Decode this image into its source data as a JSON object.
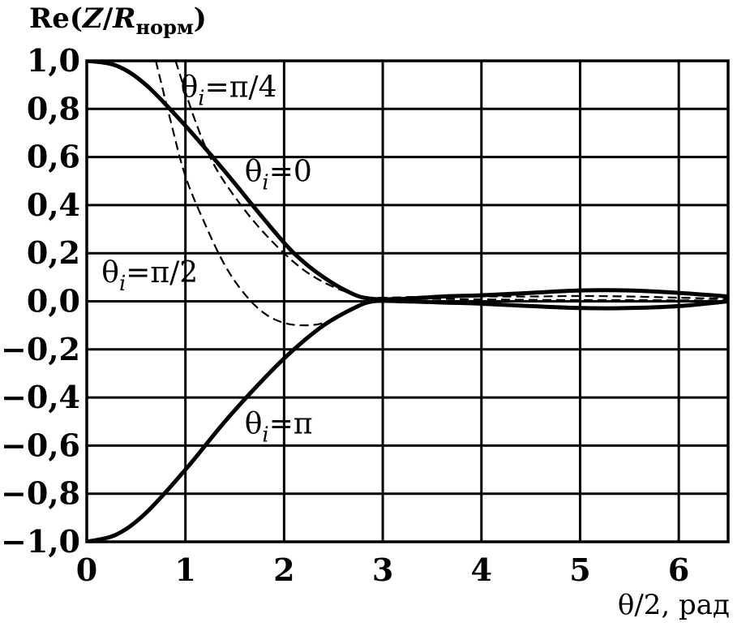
{
  "chart_data": {
    "type": "line",
    "title": "",
    "ylabel_prefix": "Re(",
    "ylabel_z": "Z",
    "ylabel_slash": "/",
    "ylabel_r": "R",
    "ylabel_sub": "норм",
    "ylabel_suffix": ")",
    "xlabel": "θ/2, рад",
    "xlim": [
      0,
      6.5
    ],
    "ylim": [
      -1.0,
      1.0
    ],
    "grid": true,
    "x_ticks": [
      {
        "value": 0,
        "label": "0"
      },
      {
        "value": 1,
        "label": "1"
      },
      {
        "value": 2,
        "label": "2"
      },
      {
        "value": 3,
        "label": "3"
      },
      {
        "value": 4,
        "label": "4"
      },
      {
        "value": 5,
        "label": "5"
      },
      {
        "value": 6,
        "label": "6"
      }
    ],
    "y_ticks": [
      {
        "value": 1.0,
        "label": "1,0"
      },
      {
        "value": 0.8,
        "label": "0,8"
      },
      {
        "value": 0.6,
        "label": "0,6"
      },
      {
        "value": 0.4,
        "label": "0,4"
      },
      {
        "value": 0.2,
        "label": "0,2"
      },
      {
        "value": 0.0,
        "label": "0,0"
      },
      {
        "value": -0.2,
        "label": "−0,2"
      },
      {
        "value": -0.4,
        "label": "−0,4"
      },
      {
        "value": -0.6,
        "label": "−0,6"
      },
      {
        "value": -0.8,
        "label": "−0,8"
      },
      {
        "value": -1.0,
        "label": "−1,0"
      }
    ],
    "series": [
      {
        "name": "θi=0",
        "label_main": "θ",
        "label_sub": "i",
        "label_rest": "=0",
        "label_pos": [
          1.6,
          0.5
        ],
        "style": "solid",
        "points": [
          [
            0,
            1.0
          ],
          [
            0.3,
            0.98
          ],
          [
            0.6,
            0.9
          ],
          [
            1.0,
            0.73
          ],
          [
            1.4,
            0.54
          ],
          [
            1.8,
            0.34
          ],
          [
            2.1,
            0.2
          ],
          [
            2.4,
            0.1
          ],
          [
            2.7,
            0.03
          ],
          [
            2.9,
            0.01
          ],
          [
            3.2,
            0.01
          ],
          [
            3.6,
            0.02
          ],
          [
            4.0,
            0.025
          ],
          [
            4.5,
            0.035
          ],
          [
            5.0,
            0.045
          ],
          [
            5.5,
            0.045
          ],
          [
            6.0,
            0.035
          ],
          [
            6.5,
            0.02
          ]
        ]
      },
      {
        "name": "θi=π",
        "label_main": "θ",
        "label_sub": "i",
        "label_rest": "=π",
        "label_pos": [
          1.6,
          -0.55
        ],
        "style": "solid",
        "points": [
          [
            0,
            -1.0
          ],
          [
            0.3,
            -0.97
          ],
          [
            0.6,
            -0.88
          ],
          [
            1.0,
            -0.7
          ],
          [
            1.4,
            -0.5
          ],
          [
            1.8,
            -0.32
          ],
          [
            2.1,
            -0.2
          ],
          [
            2.4,
            -0.1
          ],
          [
            2.7,
            -0.03
          ],
          [
            2.9,
            0.0
          ],
          [
            3.2,
            0.0
          ],
          [
            3.6,
            -0.005
          ],
          [
            4.0,
            -0.01
          ],
          [
            4.5,
            -0.02
          ],
          [
            5.0,
            -0.028
          ],
          [
            5.5,
            -0.028
          ],
          [
            6.0,
            -0.02
          ],
          [
            6.5,
            0.0
          ]
        ]
      },
      {
        "name": "θi=π/4",
        "label_main": "θ",
        "label_sub": "i",
        "label_rest": "=π/4",
        "label_pos": [
          0.95,
          0.85
        ],
        "style": "dashed",
        "points": [
          [
            0.9,
            1.0
          ],
          [
            1.1,
            0.75
          ],
          [
            1.3,
            0.56
          ],
          [
            1.6,
            0.38
          ],
          [
            1.9,
            0.24
          ],
          [
            2.2,
            0.13
          ],
          [
            2.5,
            0.06
          ],
          [
            2.8,
            0.02
          ],
          [
            3.0,
            0.015
          ],
          [
            3.5,
            0.02
          ],
          [
            4.0,
            0.02
          ],
          [
            4.5,
            0.02
          ],
          [
            5.0,
            0.022
          ],
          [
            5.5,
            0.02
          ],
          [
            6.0,
            0.015
          ],
          [
            6.5,
            0.01
          ]
        ]
      },
      {
        "name": "θi=π/2",
        "label_main": "θ",
        "label_sub": "i",
        "label_rest": "=π/2",
        "label_pos": [
          0.15,
          0.08
        ],
        "style": "dashed",
        "points": [
          [
            0.7,
            1.0
          ],
          [
            0.85,
            0.75
          ],
          [
            1.0,
            0.52
          ],
          [
            1.2,
            0.32
          ],
          [
            1.4,
            0.15
          ],
          [
            1.6,
            0.03
          ],
          [
            1.8,
            -0.05
          ],
          [
            2.0,
            -0.09
          ],
          [
            2.2,
            -0.1
          ],
          [
            2.4,
            -0.09
          ],
          [
            2.6,
            -0.05
          ],
          [
            2.8,
            -0.01
          ],
          [
            3.0,
            0.01
          ],
          [
            3.5,
            0.01
          ],
          [
            4.0,
            0.008
          ],
          [
            4.5,
            0.006
          ],
          [
            5.0,
            0.005
          ],
          [
            5.5,
            0.005
          ],
          [
            6.0,
            0.004
          ],
          [
            6.5,
            0.003
          ]
        ]
      }
    ]
  }
}
